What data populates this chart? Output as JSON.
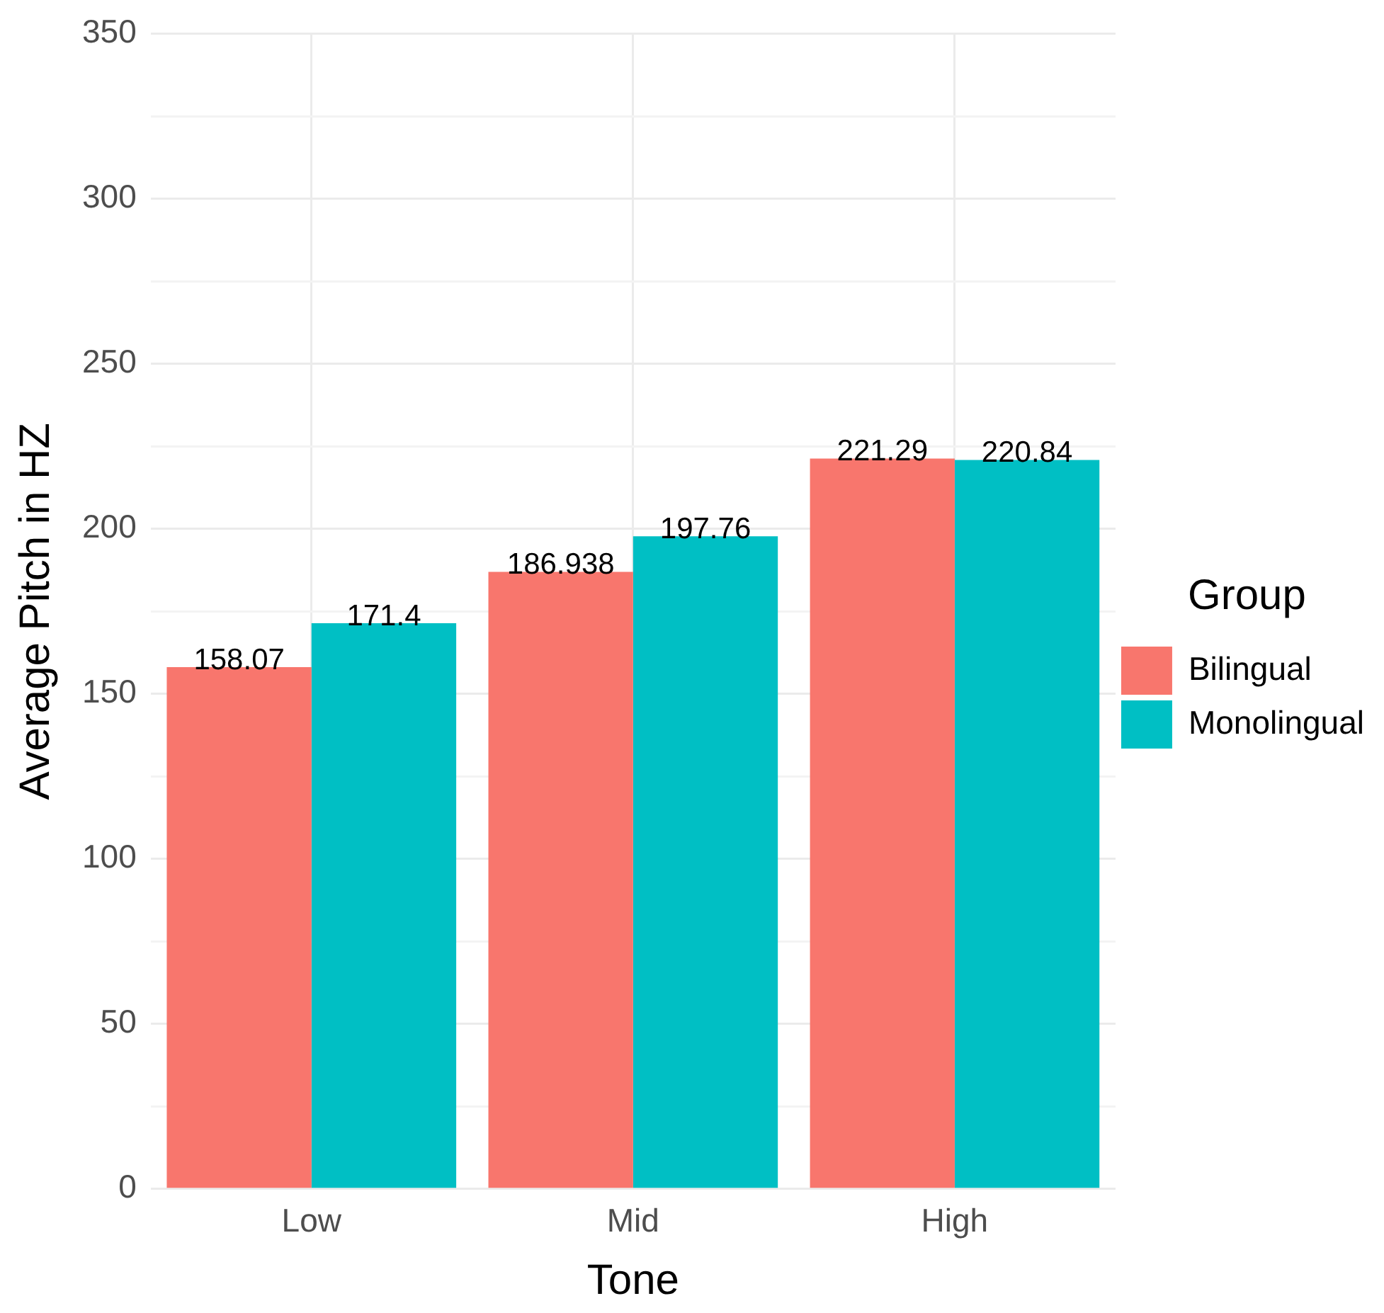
{
  "chart_data": {
    "type": "bar",
    "xlabel": "Tone",
    "ylabel": "Average Pitch in HZ",
    "legend_title": "Group",
    "categories": [
      "Low",
      "Mid",
      "High"
    ],
    "series": [
      {
        "name": "Bilingual",
        "color": "#f8766d",
        "values": [
          158.07,
          186.938,
          221.29
        ]
      },
      {
        "name": "Monolingual",
        "color": "#00bfc4",
        "values": [
          171.4,
          197.76,
          220.84
        ]
      }
    ],
    "ylim": [
      0,
      350
    ],
    "yticks": [
      0,
      {
        "value": 25,
        "label": null
      },
      50,
      {
        "value": 75,
        "label": null
      },
      100,
      {
        "value": 125,
        "label": null
      },
      150,
      {
        "value": 175,
        "label": null
      },
      200,
      {
        "value": 225,
        "label": null
      },
      250,
      {
        "value": 275,
        "label": null
      },
      300,
      {
        "value": 325,
        "label": null
      },
      350
    ],
    "grid": true,
    "legend": "right",
    "data_labels": true
  }
}
